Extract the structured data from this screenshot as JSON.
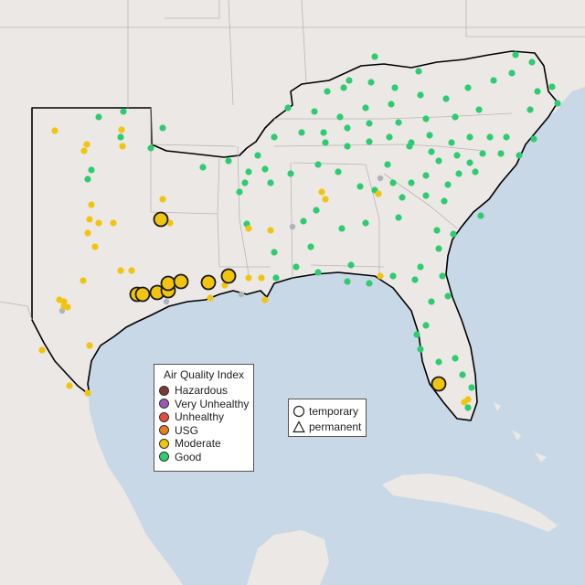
{
  "legend": {
    "title": "Air Quality Index",
    "categories": [
      {
        "label": "Hazardous",
        "color": "#7e3a2f"
      },
      {
        "label": "Very Unhealthy",
        "color": "#9b59b6"
      },
      {
        "label": "Unhealthy",
        "color": "#e74c3c"
      },
      {
        "label": "USG",
        "color": "#e67e22"
      },
      {
        "label": "Moderate",
        "color": "#f1c40f"
      },
      {
        "label": "Good",
        "color": "#2ecc71"
      }
    ]
  },
  "shape_legend": {
    "temporary_label": "temporary",
    "permanent_label": "permanent"
  },
  "monitor_icons": {
    "temporary": "circle-icon",
    "permanent": "triangle-icon"
  }
}
